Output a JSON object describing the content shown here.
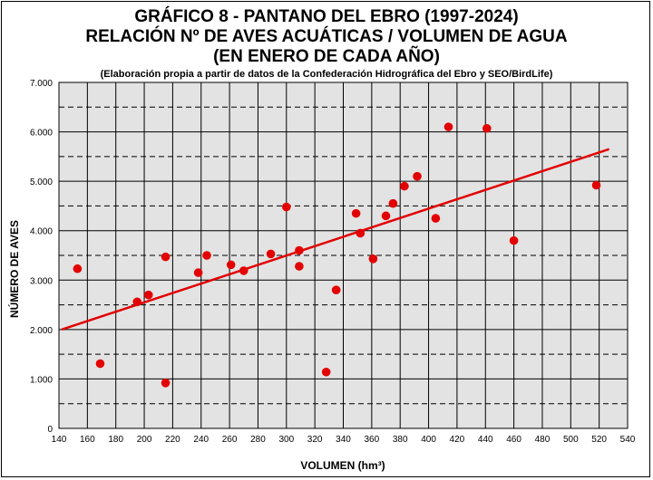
{
  "chart_data": {
    "type": "scatter",
    "title_lines": [
      "GRÁFICO 8 - PANTANO DEL EBRO (1997-2024)",
      "RELACIÓN Nº DE AVES ACUÁTICAS / VOLUMEN DE AGUA",
      "(EN ENERO DE CADA AÑO)"
    ],
    "subtitle": "(Elaboración propia a partir de datos de la Confederación Hidrográfica del Ebro y SEO/BirdLife)",
    "xlabel": "VOLUMEN (hm³)",
    "ylabel": "NÚMERO DE AVES",
    "xlim": [
      140,
      540
    ],
    "ylim": [
      0,
      7000
    ],
    "x_ticks": [
      140,
      160,
      180,
      200,
      220,
      240,
      260,
      280,
      300,
      320,
      340,
      360,
      380,
      400,
      420,
      440,
      460,
      480,
      500,
      520,
      540
    ],
    "y_ticks": [
      {
        "value": 0,
        "label": "0"
      },
      {
        "value": 1000,
        "label": "1.000"
      },
      {
        "value": 2000,
        "label": "2.000"
      },
      {
        "value": 3000,
        "label": "3.000"
      },
      {
        "value": 4000,
        "label": "4.000"
      },
      {
        "value": 5000,
        "label": "5.000"
      },
      {
        "value": 6000,
        "label": "6.000"
      },
      {
        "value": 7000,
        "label": "7.000"
      }
    ],
    "minor_gridlines_y": [
      500,
      1500,
      2500,
      3500,
      4500,
      5500,
      6500
    ],
    "grid": true,
    "points": [
      {
        "x": 153,
        "y": 3230
      },
      {
        "x": 169,
        "y": 1310
      },
      {
        "x": 195,
        "y": 2560
      },
      {
        "x": 203,
        "y": 2700
      },
      {
        "x": 215,
        "y": 3470
      },
      {
        "x": 215,
        "y": 920
      },
      {
        "x": 238,
        "y": 3150
      },
      {
        "x": 244,
        "y": 3500
      },
      {
        "x": 261,
        "y": 3310
      },
      {
        "x": 270,
        "y": 3190
      },
      {
        "x": 289,
        "y": 3530
      },
      {
        "x": 300,
        "y": 4480
      },
      {
        "x": 309,
        "y": 3600
      },
      {
        "x": 309,
        "y": 3280
      },
      {
        "x": 328,
        "y": 1140
      },
      {
        "x": 335,
        "y": 2800
      },
      {
        "x": 349,
        "y": 4350
      },
      {
        "x": 352,
        "y": 3950
      },
      {
        "x": 361,
        "y": 3430
      },
      {
        "x": 370,
        "y": 4300
      },
      {
        "x": 375,
        "y": 4550
      },
      {
        "x": 383,
        "y": 4900
      },
      {
        "x": 392,
        "y": 5100
      },
      {
        "x": 405,
        "y": 4250
      },
      {
        "x": 414,
        "y": 6100
      },
      {
        "x": 441,
        "y": 6070
      },
      {
        "x": 460,
        "y": 3800
      },
      {
        "x": 518,
        "y": 4920
      }
    ],
    "trendline": {
      "x": [
        142,
        527
      ],
      "y": [
        2000,
        5650
      ]
    },
    "colors": {
      "plot_bg": "#e3e3e3",
      "points": "#e30000",
      "trendline": "#e30000",
      "grid": "#000000"
    }
  }
}
